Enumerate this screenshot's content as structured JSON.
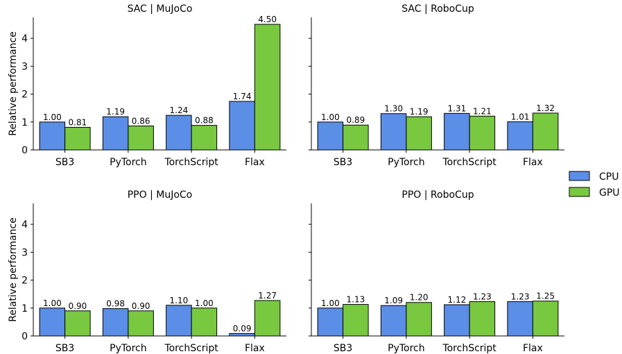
{
  "legend": {
    "entries": [
      {
        "label": "CPU",
        "color": "#5b8ee6"
      },
      {
        "label": "GPU",
        "color": "#78c840"
      }
    ],
    "placement": "right"
  },
  "chart_data": [
    {
      "type": "bar",
      "title": "SAC | MuJoCo",
      "xlabel": "",
      "ylabel": "Relative performance",
      "ylim": [
        0,
        4.75
      ],
      "yticks": [
        0,
        1,
        2,
        3,
        4
      ],
      "categories": [
        "SB3",
        "PyTorch",
        "TorchScript",
        "Flax"
      ],
      "series": [
        {
          "name": "CPU",
          "values": [
            1.0,
            1.19,
            1.24,
            1.74
          ],
          "labels": [
            "1.00",
            "1.19",
            "1.24",
            "1.74"
          ]
        },
        {
          "name": "GPU",
          "values": [
            0.81,
            0.86,
            0.88,
            4.5
          ],
          "labels": [
            "0.81",
            "0.86",
            "0.88",
            "4.50"
          ]
        }
      ]
    },
    {
      "type": "bar",
      "title": "SAC | RoboCup",
      "xlabel": "",
      "ylabel": "",
      "ylim": [
        0,
        4.75
      ],
      "yticks": [
        0,
        1,
        2,
        3,
        4
      ],
      "categories": [
        "SB3",
        "PyTorch",
        "TorchScript",
        "Flax"
      ],
      "series": [
        {
          "name": "CPU",
          "values": [
            1.0,
            1.3,
            1.31,
            1.01
          ],
          "labels": [
            "1.00",
            "1.30",
            "1.31",
            "1.01"
          ]
        },
        {
          "name": "GPU",
          "values": [
            0.89,
            1.19,
            1.21,
            1.32
          ],
          "labels": [
            "0.89",
            "1.19",
            "1.21",
            "1.32"
          ]
        }
      ]
    },
    {
      "type": "bar",
      "title": "PPO | MuJoCo",
      "xlabel": "",
      "ylabel": "Relative performance",
      "ylim": [
        0,
        4.75
      ],
      "yticks": [
        0,
        1,
        2,
        3,
        4
      ],
      "categories": [
        "SB3",
        "PyTorch",
        "TorchScript",
        "Flax"
      ],
      "series": [
        {
          "name": "CPU",
          "values": [
            1.0,
            0.98,
            1.1,
            0.09
          ],
          "labels": [
            "1.00",
            "0.98",
            "1.10",
            "0.09"
          ]
        },
        {
          "name": "GPU",
          "values": [
            0.9,
            0.9,
            1.0,
            1.27
          ],
          "labels": [
            "0.90",
            "0.90",
            "1.00",
            "1.27"
          ]
        }
      ]
    },
    {
      "type": "bar",
      "title": "PPO | RoboCup",
      "xlabel": "",
      "ylabel": "",
      "ylim": [
        0,
        4.75
      ],
      "yticks": [
        0,
        1,
        2,
        3,
        4
      ],
      "categories": [
        "SB3",
        "PyTorch",
        "TorchScript",
        "Flax"
      ],
      "series": [
        {
          "name": "CPU",
          "values": [
            1.0,
            1.09,
            1.12,
            1.23
          ],
          "labels": [
            "1.00",
            "1.09",
            "1.12",
            "1.23"
          ]
        },
        {
          "name": "GPU",
          "values": [
            1.13,
            1.2,
            1.23,
            1.25
          ],
          "labels": [
            "1.13",
            "1.20",
            "1.23",
            "1.25"
          ]
        }
      ]
    }
  ]
}
